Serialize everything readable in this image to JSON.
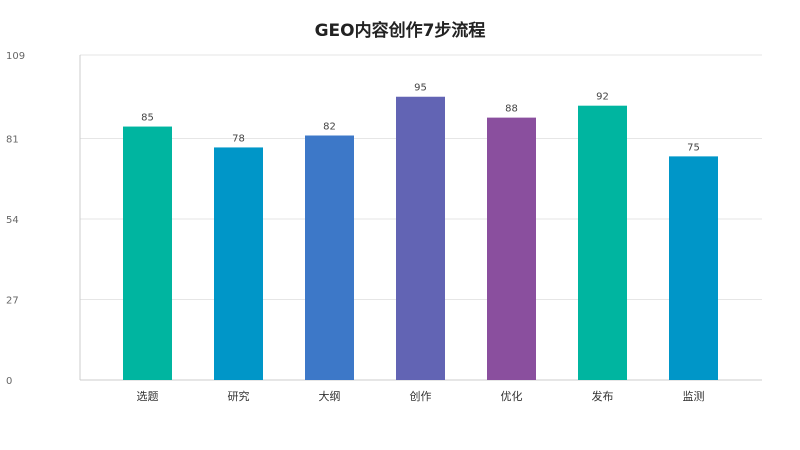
{
  "chart_data": {
    "type": "bar",
    "title": "GEO内容创作7步流程",
    "categories": [
      "选题",
      "研究",
      "大纲",
      "创作",
      "优化",
      "发布",
      "监测"
    ],
    "values": [
      85,
      78,
      82,
      95,
      88,
      92,
      75
    ],
    "data_labels": [
      "85",
      "78",
      "82",
      "95",
      "88",
      "92",
      "75"
    ],
    "xlabel": "",
    "ylabel": "",
    "ylim": [
      0,
      109
    ],
    "yticks": [
      0,
      27,
      54,
      81,
      109
    ],
    "ytick_labels": [
      "0",
      "27",
      "54",
      "81",
      "109"
    ],
    "grid": true,
    "legend": "none",
    "colors": [
      "#00b5a0",
      "#0096c8",
      "#3d78c8",
      "#6264b4",
      "#8a4f9e",
      "#00b5a0",
      "#0096c8"
    ]
  }
}
